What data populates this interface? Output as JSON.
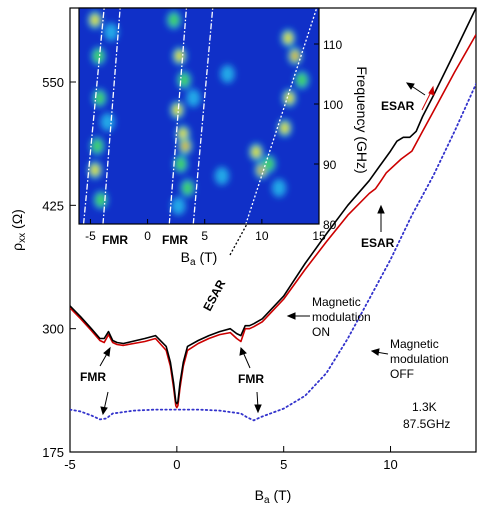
{
  "chart_data": [
    {
      "type": "line",
      "xlabel_main": "B",
      "xlabel_sub": "a",
      "xlabel_unit": " (T)",
      "ylabel_main": "ρ",
      "ylabel_sub": "xx",
      "ylabel_unit": " (Ω)",
      "xlim": [
        -5,
        14
      ],
      "ylim": [
        175,
        625
      ],
      "xticks": [
        -5,
        0,
        5,
        10
      ],
      "yticks": [
        175,
        300,
        425,
        550
      ],
      "grid": false,
      "series": [
        {
          "key": "on_up",
          "color": "#cc0000",
          "style": "solid",
          "x": [
            -5,
            -4.5,
            -4,
            -3.6,
            -3.4,
            -3.2,
            -3.0,
            -2.8,
            -2.5,
            -1.5,
            -1.0,
            -0.5,
            -0.3,
            -0.15,
            -0.05,
            0,
            0.05,
            0.15,
            0.3,
            0.5,
            1.0,
            1.5,
            2.0,
            2.5,
            2.8,
            3.0,
            3.2,
            3.4,
            3.6,
            4.0,
            5.0,
            6.0,
            7.0,
            8.0,
            9.0,
            9.3,
            9.5,
            9.8,
            10.5,
            11.0,
            11.5,
            12.0,
            13.0,
            14.0
          ],
          "y": [
            321,
            310,
            298,
            288,
            286,
            294,
            286,
            284,
            283,
            287,
            290,
            278,
            262,
            240,
            222,
            220,
            222,
            240,
            262,
            278,
            285,
            290,
            294,
            296,
            290,
            287,
            300,
            300,
            302,
            307,
            330,
            360,
            388,
            415,
            437,
            442,
            448,
            458,
            472,
            480,
            500,
            520,
            560,
            598
          ]
        },
        {
          "key": "on_down",
          "color": "#000000",
          "style": "solid",
          "x": [
            -5,
            -4.5,
            -4,
            -3.6,
            -3.4,
            -3.2,
            -3.0,
            -2.8,
            -2.5,
            -1.5,
            -1.0,
            -0.5,
            -0.3,
            -0.15,
            -0.05,
            0,
            0.05,
            0.15,
            0.3,
            0.5,
            1.0,
            1.5,
            2.0,
            2.5,
            2.8,
            3.0,
            3.2,
            3.4,
            3.6,
            4.0,
            5.0,
            6.0,
            7.0,
            8.0,
            9.0,
            9.5,
            10.0,
            10.3,
            10.6,
            10.9,
            11.2,
            11.5,
            12.0,
            13.0,
            14.0
          ],
          "y": [
            323,
            312,
            300,
            290,
            290,
            297,
            288,
            286,
            285,
            290,
            293,
            282,
            266,
            245,
            226,
            224,
            226,
            245,
            266,
            282,
            288,
            293,
            297,
            300,
            295,
            293,
            303,
            303,
            305,
            310,
            333,
            366,
            396,
            425,
            450,
            465,
            480,
            490,
            494,
            494,
            500,
            515,
            536,
            580,
            625
          ]
        },
        {
          "key": "off",
          "color": "#3333cc",
          "style": "dotted",
          "x": [
            -5,
            -4.5,
            -4,
            -3.6,
            -3.3,
            -3.0,
            -2.0,
            -1.0,
            0,
            1.0,
            2.0,
            3.0,
            3.3,
            3.6,
            4.0,
            5.0,
            6.0,
            7.0,
            8.0,
            9.0,
            10.0,
            11.0,
            12.0,
            13.0,
            14.0
          ],
          "y": [
            218,
            216,
            212,
            208,
            209,
            214,
            217,
            218,
            218,
            218,
            217,
            214,
            210,
            207,
            211,
            219,
            232,
            255,
            290,
            330,
            370,
            415,
            455,
            500,
            548
          ]
        }
      ],
      "annotations": {
        "esar_top": "ESAR",
        "esar_mid": "ESAR",
        "esar_inset": "ESAR",
        "fmr_left": "FMR",
        "fmr_right": "FMR",
        "mod_on_1": "Magnetic",
        "mod_on_2": "modulation",
        "mod_on_3": "ON",
        "mod_off_1": "Magnetic",
        "mod_off_2": "modulation",
        "mod_off_3": "OFF",
        "cond_temp": "1.3K",
        "cond_freq": "87.5GHz"
      }
    },
    {
      "type": "heatmap",
      "xlabel_main": "B",
      "xlabel_sub": "a",
      "xlabel_unit": " (T)",
      "ylabel": "Frequency (GHz)",
      "xlim": [
        -6,
        15
      ],
      "ylim": [
        80,
        116
      ],
      "xticks": [
        -5,
        0,
        5,
        10,
        15
      ],
      "yticks": [
        80,
        90,
        100,
        110
      ],
      "fmr_label_left": "FMR",
      "fmr_label_right": "FMR",
      "colors": {
        "background": "#1030c8",
        "low": "#20a8e8",
        "mid": "#40d060",
        "high": "#f0e020",
        "peak": "#e02020"
      },
      "hotspots": [
        {
          "x": -4.6,
          "y": 114,
          "level": 3
        },
        {
          "x": -4.3,
          "y": 108,
          "level": 2
        },
        {
          "x": -4.2,
          "y": 101,
          "level": 2
        },
        {
          "x": -4.4,
          "y": 93,
          "level": 2
        },
        {
          "x": -4.6,
          "y": 89,
          "level": 3
        },
        {
          "x": -4.1,
          "y": 84,
          "level": 2
        },
        {
          "x": -3.5,
          "y": 97,
          "level": 1
        },
        {
          "x": -3.2,
          "y": 112,
          "level": 1
        },
        {
          "x": 2.3,
          "y": 114,
          "level": 2
        },
        {
          "x": 2.8,
          "y": 108,
          "level": 3
        },
        {
          "x": 3.2,
          "y": 104,
          "level": 2
        },
        {
          "x": 2.6,
          "y": 99,
          "level": 3
        },
        {
          "x": 3.1,
          "y": 95,
          "level": 3
        },
        {
          "x": 3.3,
          "y": 93,
          "level": 4
        },
        {
          "x": 2.9,
          "y": 90,
          "level": 2
        },
        {
          "x": 3.5,
          "y": 86,
          "level": 2
        },
        {
          "x": 2.7,
          "y": 83,
          "level": 1
        },
        {
          "x": 4.0,
          "y": 101,
          "level": 1
        },
        {
          "x": 9.5,
          "y": 92,
          "level": 3
        },
        {
          "x": 10.0,
          "y": 89,
          "level": 4
        },
        {
          "x": 10.6,
          "y": 90,
          "level": 2
        },
        {
          "x": 12.0,
          "y": 96,
          "level": 3
        },
        {
          "x": 12.4,
          "y": 101,
          "level": 3
        },
        {
          "x": 12.9,
          "y": 108,
          "level": 4
        },
        {
          "x": 12.3,
          "y": 111,
          "level": 3
        },
        {
          "x": 13.5,
          "y": 104,
          "level": 2
        },
        {
          "x": 11.5,
          "y": 86,
          "level": 1
        },
        {
          "x": 7.0,
          "y": 105,
          "level": 1
        },
        {
          "x": 6.5,
          "y": 88,
          "level": 1
        }
      ],
      "guide_lines": [
        {
          "x": [
            -5.6,
            -3.8
          ],
          "y": [
            80,
            116
          ]
        },
        {
          "x": [
            -3.9,
            -2.4
          ],
          "y": [
            80,
            116
          ]
        },
        {
          "x": [
            1.9,
            3.4
          ],
          "y": [
            80,
            116
          ]
        },
        {
          "x": [
            4.0,
            5.7
          ],
          "y": [
            80,
            116
          ]
        }
      ],
      "esar_line": {
        "x": [
          8.6,
          14.8
        ],
        "y": [
          80,
          116
        ]
      }
    }
  ]
}
